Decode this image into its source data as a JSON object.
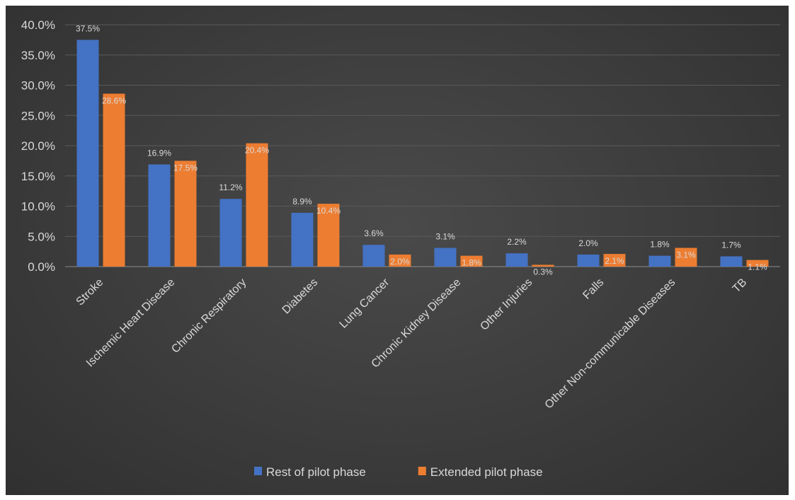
{
  "chart_data": {
    "type": "bar",
    "title": "",
    "xlabel": "",
    "ylabel": "",
    "ylim": [
      0,
      40
    ],
    "y_ticks": [
      "0.0%",
      "5.0%",
      "10.0%",
      "15.0%",
      "20.0%",
      "25.0%",
      "30.0%",
      "35.0%",
      "40.0%"
    ],
    "grid": "horizontal",
    "legend_position": "bottom",
    "categories": [
      "Stroke",
      "Ischemic Heart Disease",
      "Chronic Respiratory",
      "Diabetes",
      "Lung Cancer",
      "Chronic Kidney Disease",
      "Other Injuries",
      "Falls",
      "Other Non-communicable Diseases",
      "TB"
    ],
    "series": [
      {
        "name": "Rest of pilot phase",
        "color": "#4472c4",
        "values": [
          37.5,
          16.9,
          11.2,
          8.9,
          3.6,
          3.1,
          2.2,
          2.0,
          1.8,
          1.7
        ],
        "labels": [
          "37.5%",
          "16.9%",
          "11.2%",
          "8.9%",
          "3.6%",
          "3.1%",
          "2.2%",
          "2.0%",
          "1.8%",
          "1.7%"
        ]
      },
      {
        "name": "Extended pilot phase",
        "color": "#ed7d31",
        "values": [
          28.6,
          17.5,
          20.4,
          10.4,
          2.0,
          1.8,
          0.3,
          2.1,
          3.1,
          1.1
        ],
        "labels": [
          "28.6%",
          "17.5%",
          "20.4%",
          "10.4%",
          "2.0%",
          "1.8%",
          "0.3%",
          "2.1%",
          "3.1%",
          "1.1%"
        ]
      }
    ]
  }
}
